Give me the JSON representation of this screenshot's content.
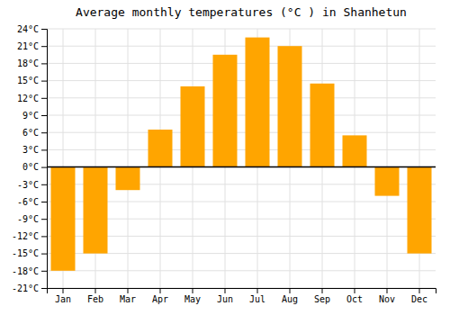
{
  "chart_data": {
    "type": "bar",
    "title": "Average monthly temperatures (°C ) in Shanhetun",
    "categories": [
      "Jan",
      "Feb",
      "Mar",
      "Apr",
      "May",
      "Jun",
      "Jul",
      "Aug",
      "Sep",
      "Oct",
      "Nov",
      "Dec"
    ],
    "values": [
      -18,
      -15,
      -4,
      6.5,
      14,
      19.5,
      22.5,
      21,
      14.5,
      5.5,
      -5,
      -15
    ],
    "color": "#FFA500",
    "ylim": [
      -21,
      24
    ],
    "yticks": [
      {
        "value": -21,
        "label": "-21°C"
      },
      {
        "value": -18,
        "label": "-18°C"
      },
      {
        "value": -15,
        "label": "-15°C"
      },
      {
        "value": -12,
        "label": "-12°C"
      },
      {
        "value": -9,
        "label": "-9°C"
      },
      {
        "value": -6,
        "label": "-6°C"
      },
      {
        "value": -3,
        "label": "-3°C"
      },
      {
        "value": 0,
        "label": "0°C"
      },
      {
        "value": 3,
        "label": "3°C"
      },
      {
        "value": 6,
        "label": "6°C"
      },
      {
        "value": 9,
        "label": "9°C"
      },
      {
        "value": 12,
        "label": "12°C"
      },
      {
        "value": 15,
        "label": "15°C"
      },
      {
        "value": 18,
        "label": "18°C"
      },
      {
        "value": 21,
        "label": "21°C"
      },
      {
        "value": 24,
        "label": "24°C"
      }
    ],
    "grid": true
  }
}
